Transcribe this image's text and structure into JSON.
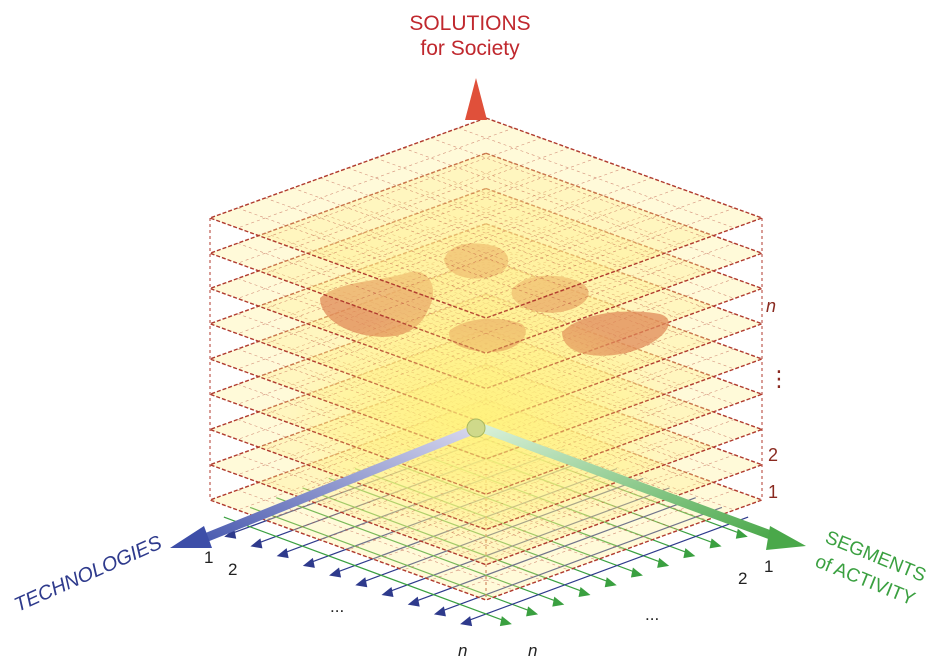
{
  "axes": {
    "vertical": {
      "title_line1": "SOLUTIONS",
      "title_line2": "for Society",
      "color": "#c0282e"
    },
    "left": {
      "title": "TECHNOLOGIES",
      "color": "#2e3a8c"
    },
    "right": {
      "title_line1": "SEGMENTS",
      "title_line2": "of ACTIVITY",
      "color": "#3aa040"
    }
  },
  "layer_labels": [
    "1",
    "2",
    "⋮",
    "n"
  ],
  "technology_labels": [
    "1",
    "2",
    "...",
    "n"
  ],
  "segment_labels": [
    "1",
    "2",
    "...",
    "n"
  ],
  "colors": {
    "layer_fill": "#fff08a",
    "layer_stroke": "#b03a2e",
    "blob_fill": "#e08a5a",
    "tech_arrow": "#2e3a8c",
    "segment_arrow": "#3aa040",
    "vertical_arrow": "#e0503a"
  }
}
